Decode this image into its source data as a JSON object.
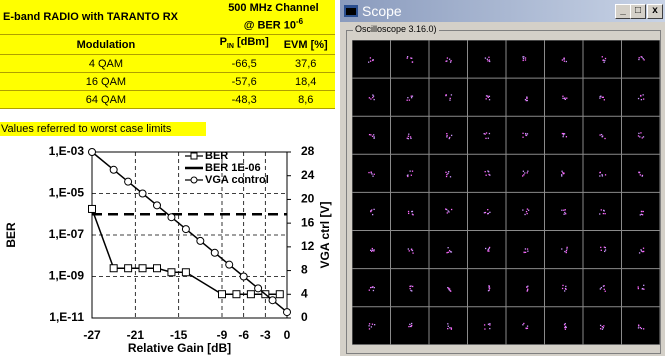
{
  "table": {
    "header_left": "E-band RADIO with TARANTO RX",
    "header_right_line1": "500 MHz Channel",
    "header_right_line2": "@ BER 10",
    "header_right_sup": "-6",
    "col_modulation": "Modulation",
    "col_pin": "P",
    "col_pin_sub": "IN",
    "col_pin_unit": "[dBm]",
    "col_evm": "EVM [%]",
    "rows": [
      [
        "4 QAM",
        "-66,5",
        "37,6"
      ],
      [
        "16 QAM",
        "-57,6",
        "18,4"
      ],
      [
        "64 QAM",
        "-48,3",
        "8,6"
      ]
    ],
    "note": "Values referred to worst case limits"
  },
  "chart_data": {
    "type": "line",
    "y_label": "BER",
    "y2_label": "VGA ctrl [V]",
    "x_label": "Relative Gain [dB]",
    "xlim": [
      -27,
      0
    ],
    "xticks": [
      -27,
      -21,
      -15,
      -9,
      -6,
      -3,
      0
    ],
    "ylim": [
      1e-11,
      0.001
    ],
    "ylog": true,
    "yticks": [
      {
        "value": 0.001,
        "label": "1,E-03"
      },
      {
        "value": 1e-05,
        "label": "1,E-05"
      },
      {
        "value": 1e-07,
        "label": "1,E-07"
      },
      {
        "value": 1e-09,
        "label": "1,E-09"
      },
      {
        "value": 1e-11,
        "label": "1,E-11"
      }
    ],
    "y2lim": [
      0,
      28
    ],
    "y2ticks": [
      0,
      4,
      8,
      12,
      16,
      20,
      24,
      28
    ],
    "grid": true,
    "series": [
      {
        "name": "BER",
        "color": "#000000",
        "marker": "square",
        "x": [
          -27,
          -24,
          -22,
          -20,
          -18,
          -16,
          -14,
          -9,
          -7,
          -5,
          -3,
          -1
        ],
        "values": [
          1.8e-06,
          2.5e-09,
          2.5e-09,
          2.5e-09,
          2.5e-09,
          1.6e-09,
          1.6e-09,
          1.4e-10,
          1.4e-10,
          1.4e-10,
          1.4e-10,
          1.4e-10
        ]
      },
      {
        "name": "BER 1E-06",
        "color": "#000000",
        "marker": "none",
        "dashed": true,
        "x": [
          -27,
          0
        ],
        "values": [
          1e-06,
          1e-06
        ]
      },
      {
        "name": "VGA control",
        "color": "#000000",
        "marker": "circle",
        "axis": "y2",
        "x": [
          -27,
          -24,
          -22,
          -20,
          -18,
          -16,
          -14,
          -12,
          -10,
          -8,
          -6,
          -4,
          -2,
          0
        ],
        "values": [
          28,
          25,
          23,
          21,
          19,
          17,
          15,
          13,
          11,
          9,
          7,
          5,
          3,
          1
        ]
      }
    ]
  },
  "scope": {
    "title": "Scope",
    "group": "Oscilloscope  3.16.0)",
    "min": "_",
    "max": "□",
    "close": "x"
  }
}
